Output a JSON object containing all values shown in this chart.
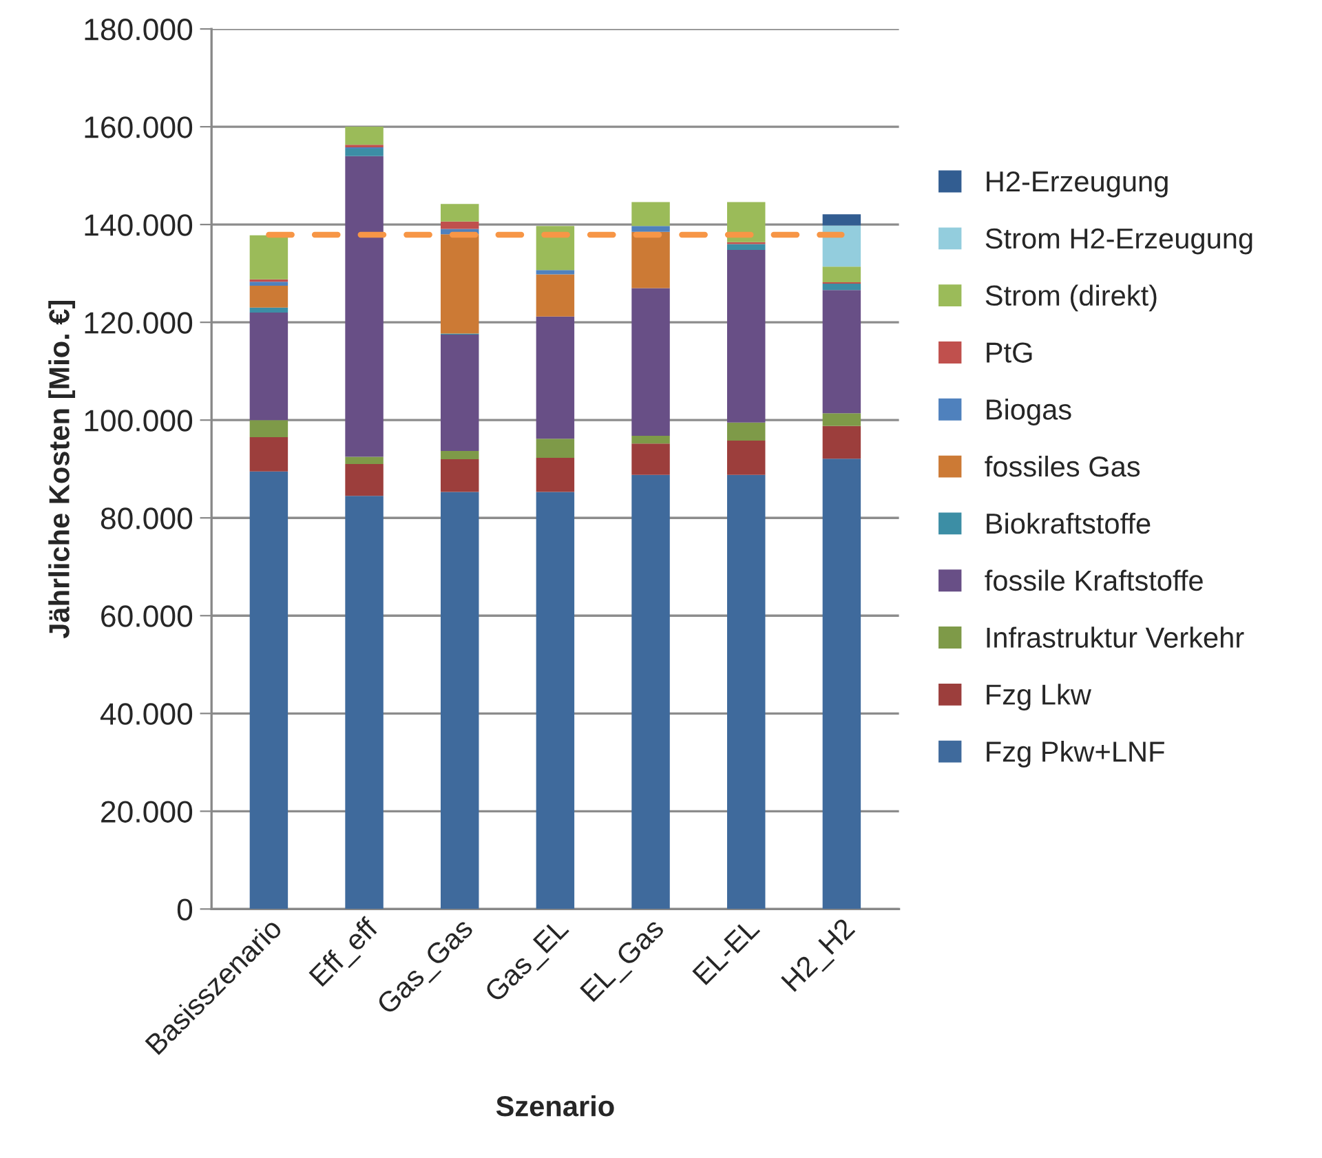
{
  "chart_data": {
    "type": "bar",
    "stacked": true,
    "xlabel": "Szenario",
    "ylabel": "Jährliche Kosten [Mio. €]",
    "categories": [
      "Basisszenario",
      "Eff_eff",
      "Gas_Gas",
      "Gas_EL",
      "EL_Gas",
      "EL-EL",
      "H2_H2"
    ],
    "ylim": [
      0,
      180000
    ],
    "yticks": [
      {
        "value": 0,
        "label": "0"
      },
      {
        "value": 20000,
        "label": "20.000"
      },
      {
        "value": 40000,
        "label": "40.000"
      },
      {
        "value": 60000,
        "label": "60.000"
      },
      {
        "value": 80000,
        "label": "80.000"
      },
      {
        "value": 100000,
        "label": "100.000"
      },
      {
        "value": 120000,
        "label": "120.000"
      },
      {
        "value": 140000,
        "label": "140.000"
      },
      {
        "value": 160000,
        "label": "160.000"
      },
      {
        "value": 180000,
        "label": "180.000"
      }
    ],
    "grid": "y",
    "legend": "right",
    "series": [
      {
        "name": "Fzg Pkw+LNF",
        "color": "#3f6a9c",
        "values": [
          89500,
          84500,
          85300,
          85300,
          88800,
          88800,
          92100
        ]
      },
      {
        "name": "Fzg Lkw",
        "color": "#9c3e3c",
        "values": [
          7000,
          6500,
          6700,
          7000,
          6400,
          7000,
          6700
        ]
      },
      {
        "name": "Infrastruktur Verkehr",
        "color": "#7e9a48",
        "values": [
          3500,
          1500,
          1700,
          3900,
          1600,
          3700,
          2600
        ]
      },
      {
        "name": "fossile Kraftstoffe",
        "color": "#684f86",
        "values": [
          22000,
          61500,
          23800,
          25000,
          30200,
          35300,
          25200
        ]
      },
      {
        "name": "Biokraftstoffe",
        "color": "#3c8ea5",
        "values": [
          1000,
          1500,
          200,
          null,
          null,
          1200,
          1300
        ]
      },
      {
        "name": "fossiles Gas",
        "color": "#cc7a35",
        "values": [
          4500,
          null,
          20300,
          8600,
          11500,
          null,
          null
        ]
      },
      {
        "name": "Biogas",
        "color": "#4f81bd",
        "values": [
          800,
          300,
          1100,
          900,
          1200,
          null,
          null
        ]
      },
      {
        "name": "PtG",
        "color": "#c0504d",
        "values": [
          500,
          500,
          1500,
          null,
          null,
          400,
          300
        ]
      },
      {
        "name": "Strom (direkt)",
        "color": "#9bbb59",
        "values": [
          9000,
          3700,
          3600,
          9000,
          4900,
          8200,
          3200
        ]
      },
      {
        "name": "Strom H2-Erzeugung",
        "color": "#93cddd",
        "values": [
          null,
          null,
          null,
          null,
          null,
          null,
          8400
        ]
      },
      {
        "name": "H2-Erzeugung",
        "color": "#325d91",
        "values": [
          null,
          null,
          null,
          null,
          null,
          null,
          2300
        ]
      }
    ],
    "ref_lines": [
      {
        "axis": "y",
        "value": 137900,
        "color": "#f79646",
        "line_style": "dashed"
      }
    ]
  }
}
